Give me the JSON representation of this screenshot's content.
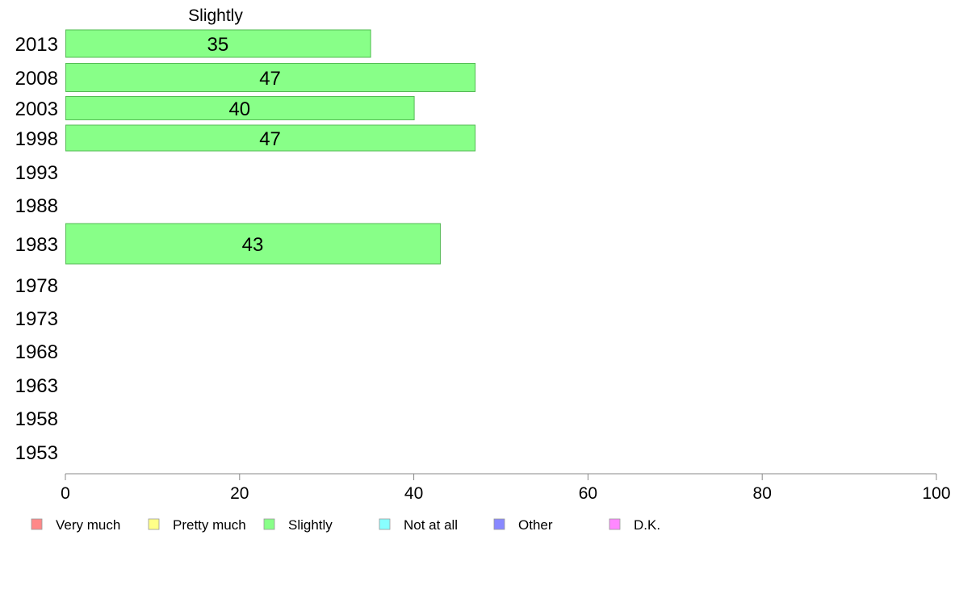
{
  "chart_data": {
    "type": "bar",
    "orientation": "horizontal",
    "panel_title": "Slightly",
    "categories": [
      "2013",
      "2008",
      "2003",
      "1998",
      "1993",
      "1988",
      "1983",
      "1978",
      "1973",
      "1968",
      "1963",
      "1958",
      "1953"
    ],
    "values": [
      35,
      47,
      40,
      47,
      null,
      null,
      43,
      null,
      null,
      null,
      null,
      null,
      null
    ],
    "data_labels": [
      "35",
      "47",
      "40",
      "47",
      "",
      "",
      "43",
      "",
      "",
      "",
      "",
      "",
      ""
    ],
    "bar_color": "#88ff88",
    "bar_border_color": "#55bb55",
    "xlim": [
      0,
      100
    ],
    "xticks": [
      0,
      20,
      40,
      60,
      80,
      100
    ],
    "grid": false,
    "legend": {
      "placement": "bottom",
      "entries": [
        {
          "label": "Very much",
          "color": "#ff8888"
        },
        {
          "label": "Pretty much",
          "color": "#ffff88"
        },
        {
          "label": "Slightly",
          "color": "#88ff88"
        },
        {
          "label": "Not at all",
          "color": "#88ffff"
        },
        {
          "label": "Other",
          "color": "#8888ff"
        },
        {
          "label": "D.K.",
          "color": "#ff88ff"
        }
      ]
    }
  }
}
